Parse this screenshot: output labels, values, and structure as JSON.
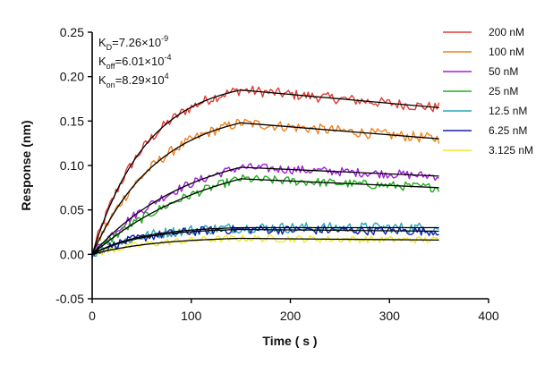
{
  "chart_data": {
    "type": "line",
    "title": "",
    "xlabel": "Time ( s )",
    "ylabel": "Response (nm)",
    "xlim": [
      0,
      400
    ],
    "ylim": [
      -0.05,
      0.25
    ],
    "xticks": [
      0,
      100,
      200,
      300,
      400
    ],
    "yticks": [
      -0.05,
      0.0,
      0.05,
      0.1,
      0.15,
      0.2,
      0.25
    ],
    "ytick_labels": [
      "-0.05",
      "0.00",
      "0.05",
      "0.10",
      "0.15",
      "0.20",
      "0.25"
    ],
    "grid": false,
    "legend_position": "top-right",
    "annotations": [
      {
        "base": "K",
        "sub": "D",
        "text": "=7.26×10",
        "sup": "-9"
      },
      {
        "base": "K",
        "sub": "off",
        "text": "=6.01×10",
        "sup": "-4"
      },
      {
        "base": "K",
        "sub": "on",
        "text": "=8.29×10",
        "sup": "4"
      }
    ],
    "association_end": 150,
    "end_time": 350,
    "series": [
      {
        "name": "200 nM",
        "color": "#e03c32",
        "peak": 0.185,
        "end": 0.165,
        "k": 0.018,
        "noise": 0.006
      },
      {
        "name": "100 nM",
        "color": "#f0821e",
        "peak": 0.148,
        "end": 0.13,
        "k": 0.015,
        "noise": 0.006
      },
      {
        "name": "50 nM",
        "color": "#a020d8",
        "peak": 0.098,
        "end": 0.088,
        "k": 0.01,
        "noise": 0.005
      },
      {
        "name": "25 nM",
        "color": "#20b020",
        "peak": 0.085,
        "end": 0.075,
        "k": 0.008,
        "noise": 0.005
      },
      {
        "name": "12.5 nM",
        "color": "#2aa6b8",
        "peak": 0.03,
        "end": 0.03,
        "k": 0.02,
        "noise": 0.006
      },
      {
        "name": "6.25 nM",
        "color": "#1020a8",
        "peak": 0.028,
        "end": 0.026,
        "k": 0.02,
        "noise": 0.005
      },
      {
        "name": "3.125 nM",
        "color": "#f2ea2a",
        "peak": 0.018,
        "end": 0.016,
        "k": 0.015,
        "noise": 0.004
      }
    ]
  }
}
